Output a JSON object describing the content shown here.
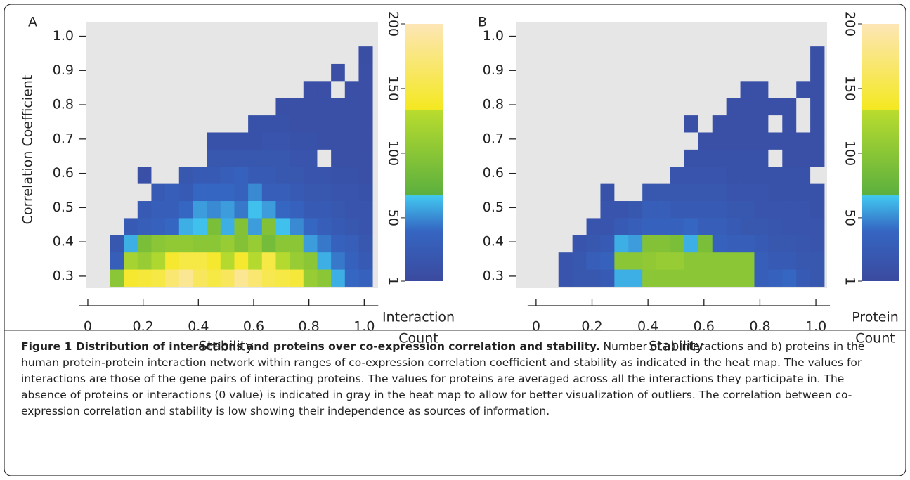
{
  "chart_data": [
    {
      "type": "heatmap",
      "panel_label": "A",
      "y_label": "Correlation Coefficient",
      "x_label": "Stability",
      "xlim": [
        -0.005,
        1.05
      ],
      "ylim": [
        0.265,
        1.04
      ],
      "xticks": [
        0,
        0.2,
        0.4,
        0.6,
        0.8,
        {
          "value": 1,
          "label": "1.0"
        }
      ],
      "yticks": [
        0.3,
        0.4,
        0.5,
        0.6,
        0.7,
        0.8,
        0.9,
        {
          "value": 1,
          "label": "1.0"
        }
      ],
      "x_bins": [
        0.08,
        0.13,
        0.18,
        0.23,
        0.28,
        0.33,
        0.38,
        0.43,
        0.48,
        0.53,
        0.58,
        0.63,
        0.68,
        0.73,
        0.78,
        0.83,
        0.88,
        0.93,
        0.98,
        1.03
      ],
      "y_bins": [
        0.27,
        0.32,
        0.37,
        0.42,
        0.47,
        0.52,
        0.57,
        0.62,
        0.67,
        0.72,
        0.77,
        0.82,
        0.87,
        0.92,
        0.97
      ],
      "values": [
        [
          100,
          140,
          145,
          150,
          170,
          185,
          160,
          150,
          160,
          185,
          170,
          155,
          150,
          145,
          110,
          100,
          60,
          40,
          35
        ],
        [
          30,
          120,
          110,
          125,
          140,
          150,
          150,
          140,
          130,
          140,
          130,
          150,
          130,
          110,
          100,
          60,
          45,
          35,
          25
        ],
        [
          20,
          60,
          90,
          100,
          105,
          105,
          100,
          100,
          110,
          95,
          110,
          85,
          100,
          100,
          55,
          45,
          35,
          30,
          20
        ],
        [
          0,
          25,
          30,
          35,
          40,
          60,
          65,
          90,
          60,
          95,
          55,
          95,
          65,
          50,
          40,
          30,
          25,
          20,
          15
        ],
        [
          0,
          0,
          25,
          30,
          30,
          40,
          55,
          50,
          55,
          45,
          65,
          55,
          40,
          35,
          25,
          25,
          20,
          15,
          15
        ],
        [
          0,
          0,
          0,
          25,
          30,
          25,
          40,
          40,
          40,
          35,
          50,
          30,
          30,
          25,
          20,
          20,
          15,
          15,
          12
        ],
        [
          0,
          0,
          10,
          0,
          0,
          20,
          25,
          25,
          30,
          35,
          25,
          25,
          20,
          20,
          15,
          15,
          12,
          12,
          10
        ],
        [
          0,
          0,
          0,
          0,
          0,
          0,
          0,
          20,
          20,
          20,
          20,
          20,
          20,
          15,
          15,
          0,
          10,
          10,
          10
        ],
        [
          0,
          0,
          0,
          0,
          0,
          0,
          0,
          12,
          12,
          12,
          12,
          15,
          15,
          12,
          12,
          10,
          10,
          10,
          8
        ],
        [
          0,
          0,
          0,
          0,
          0,
          0,
          0,
          0,
          0,
          0,
          12,
          12,
          12,
          10,
          10,
          10,
          10,
          10,
          8
        ],
        [
          0,
          0,
          0,
          0,
          0,
          0,
          0,
          0,
          0,
          0,
          0,
          0,
          10,
          10,
          10,
          10,
          10,
          10,
          8
        ],
        [
          0,
          0,
          0,
          0,
          0,
          0,
          0,
          0,
          0,
          0,
          0,
          0,
          0,
          0,
          8,
          8,
          0,
          8,
          8
        ],
        [
          0,
          0,
          0,
          0,
          0,
          0,
          0,
          0,
          0,
          0,
          0,
          0,
          0,
          0,
          0,
          0,
          8,
          0,
          8
        ],
        [
          0,
          0,
          0,
          0,
          0,
          0,
          0,
          0,
          0,
          0,
          0,
          0,
          0,
          0,
          0,
          0,
          0,
          0,
          6
        ]
      ],
      "background_color": "#e6e6e6",
      "colorbar": {
        "label": [
          "Interaction",
          "Count"
        ],
        "lim": [
          1,
          200
        ],
        "ticks": [
          1,
          50,
          100,
          150,
          200
        ]
      },
      "colorscale": [
        {
          "value": 1,
          "color": "#3b4a9f"
        },
        {
          "value": 40,
          "color": "#3566c2"
        },
        {
          "value": 67,
          "color": "#41c8f0"
        },
        {
          "value": 68,
          "color": "#5cb03e"
        },
        {
          "value": 133,
          "color": "#b9dc2e"
        },
        {
          "value": 134,
          "color": "#f4e821"
        },
        {
          "value": 200,
          "color": "#fde6b6"
        }
      ]
    },
    {
      "type": "heatmap",
      "panel_label": "B",
      "x_label": "Stability",
      "xlim": [
        -0.07,
        1.04
      ],
      "ylim": [
        0.265,
        1.04
      ],
      "xticks": [
        0,
        0.2,
        0.4,
        0.6,
        0.8,
        {
          "value": 1,
          "label": "1.0"
        }
      ],
      "yticks": [
        0.3,
        0.4,
        0.5,
        0.6,
        0.7,
        0.8,
        0.9,
        {
          "value": 1,
          "label": "1.0"
        }
      ],
      "x_bins": [
        0.08,
        0.13,
        0.18,
        0.23,
        0.28,
        0.33,
        0.38,
        0.43,
        0.48,
        0.53,
        0.58,
        0.63,
        0.68,
        0.73,
        0.78,
        0.83,
        0.88,
        0.93,
        0.98,
        1.03
      ],
      "y_bins": [
        0.27,
        0.32,
        0.37,
        0.42,
        0.47,
        0.52,
        0.57,
        0.62,
        0.67,
        0.72,
        0.77,
        0.82,
        0.87,
        0.92,
        0.97
      ],
      "values": [
        [
          15,
          20,
          20,
          25,
          60,
          60,
          100,
          100,
          100,
          100,
          100,
          100,
          100,
          100,
          30,
          35,
          40,
          25,
          20
        ],
        [
          15,
          20,
          30,
          35,
          100,
          100,
          105,
          110,
          110,
          100,
          100,
          100,
          100,
          100,
          30,
          25,
          25,
          20,
          20
        ],
        [
          0,
          15,
          20,
          25,
          60,
          55,
          95,
          95,
          90,
          60,
          90,
          35,
          30,
          30,
          25,
          20,
          20,
          18,
          15
        ],
        [
          0,
          0,
          15,
          15,
          25,
          30,
          35,
          35,
          35,
          40,
          30,
          30,
          25,
          20,
          20,
          18,
          15,
          15,
          15
        ],
        [
          0,
          0,
          0,
          15,
          15,
          20,
          30,
          30,
          25,
          25,
          25,
          25,
          20,
          20,
          15,
          15,
          15,
          15,
          12
        ],
        [
          0,
          0,
          0,
          12,
          0,
          0,
          20,
          20,
          20,
          20,
          20,
          20,
          15,
          15,
          15,
          12,
          12,
          12,
          12
        ],
        [
          0,
          0,
          0,
          0,
          0,
          0,
          0,
          0,
          15,
          15,
          15,
          15,
          12,
          12,
          12,
          12,
          12,
          12,
          0
        ],
        [
          0,
          0,
          0,
          0,
          0,
          0,
          0,
          0,
          0,
          12,
          12,
          12,
          12,
          12,
          12,
          0,
          10,
          10,
          10
        ],
        [
          0,
          0,
          0,
          0,
          0,
          0,
          0,
          0,
          0,
          0,
          10,
          10,
          10,
          10,
          10,
          10,
          10,
          10,
          10
        ],
        [
          0,
          0,
          0,
          0,
          0,
          0,
          0,
          0,
          0,
          10,
          0,
          10,
          10,
          10,
          10,
          0,
          10,
          0,
          10
        ],
        [
          0,
          0,
          0,
          0,
          0,
          0,
          0,
          0,
          0,
          0,
          0,
          0,
          10,
          10,
          10,
          10,
          10,
          0,
          10
        ],
        [
          0,
          0,
          0,
          0,
          0,
          0,
          0,
          0,
          0,
          0,
          0,
          0,
          0,
          10,
          10,
          0,
          0,
          10,
          10
        ],
        [
          0,
          0,
          0,
          0,
          0,
          0,
          0,
          0,
          0,
          0,
          0,
          0,
          0,
          0,
          0,
          0,
          0,
          0,
          10
        ],
        [
          0,
          0,
          0,
          0,
          0,
          0,
          0,
          0,
          0,
          0,
          0,
          0,
          0,
          0,
          0,
          0,
          0,
          0,
          10
        ]
      ],
      "background_color": "#e6e6e6",
      "colorbar": {
        "label": [
          "Protein",
          "Count"
        ],
        "lim": [
          1,
          200
        ],
        "ticks": [
          1,
          50,
          100,
          150,
          200
        ]
      },
      "colorscale": [
        {
          "value": 1,
          "color": "#3b4a9f"
        },
        {
          "value": 40,
          "color": "#3566c2"
        },
        {
          "value": 67,
          "color": "#41c8f0"
        },
        {
          "value": 68,
          "color": "#5cb03e"
        },
        {
          "value": 133,
          "color": "#b9dc2e"
        },
        {
          "value": 134,
          "color": "#f4e821"
        },
        {
          "value": 200,
          "color": "#fde6b6"
        }
      ]
    }
  ],
  "caption": {
    "title": "Figure 1 Distribution of interactions and proteins over co-expression correlation and stability.",
    "text": "Number of a) interactions and b) proteins in the human protein-protein interaction network within ranges of co-expression correlation coefficient and stability as indicated in the heat map. The values for interactions are those of the gene pairs of interacting proteins. The values for proteins are averaged across all the interactions they participate in. The absence of proteins or interactions (0 value) is indicated in gray in the heat map to allow for better visualization of outliers. The correlation between co-expression correlation and stability is low showing their independence as sources of information."
  }
}
